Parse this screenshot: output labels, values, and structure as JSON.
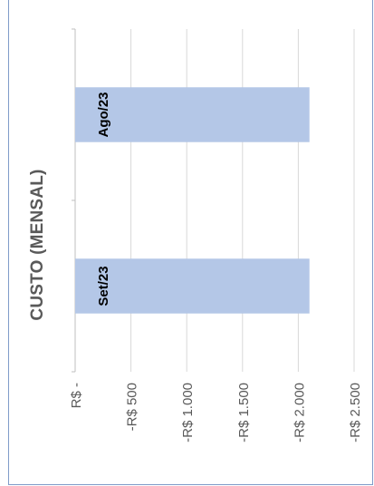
{
  "chart_data": {
    "type": "bar",
    "title": "CUSTO (MENSAL)",
    "orientation": "horizontal",
    "categories": [
      "Ago/23",
      "Set/23"
    ],
    "values": [
      -2100,
      -2100
    ],
    "value_axis": {
      "min": -2500,
      "max": 0,
      "ticks": [
        0,
        -500,
        -1000,
        -1500,
        -2000,
        -2500
      ],
      "tick_labels": [
        "R$ -",
        "-R$ 500",
        "-R$ 1.000",
        "-R$ 1.500",
        "-R$ 2.000",
        "-R$ 2.500"
      ]
    },
    "grid": true,
    "legend": "none",
    "bar_color": "#b4c7e7",
    "gridline_color": "#d9d9d9",
    "category_label_color": "#000000",
    "tick_label_color": "#595959"
  }
}
